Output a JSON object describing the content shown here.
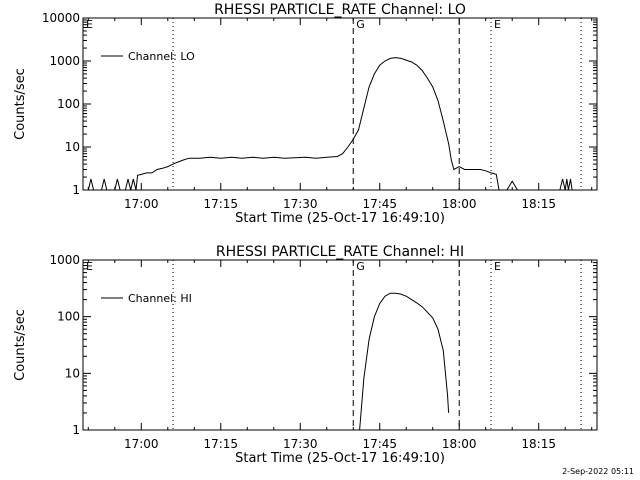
{
  "footer": {
    "timestamp": "2-Sep-2022 05:11"
  },
  "chart_data": [
    {
      "type": "line",
      "title": "RHESSI PARTICLE_RATE Channel: LO",
      "xlabel": "Start Time (25-Oct-17 16:49:10)",
      "ylabel": "Counts/sec",
      "yscale": "log",
      "ylim": [
        1,
        10000
      ],
      "xlim_minutes_after_16_49": [
        0,
        97
      ],
      "x_ticks": [
        {
          "label": "17:00",
          "t": 11
        },
        {
          "label": "17:15",
          "t": 26
        },
        {
          "label": "17:30",
          "t": 41
        },
        {
          "label": "17:45",
          "t": 56
        },
        {
          "label": "18:00",
          "t": 71
        },
        {
          "label": "18:15",
          "t": 86
        }
      ],
      "y_ticks": [
        {
          "label": "1",
          "v": 1
        },
        {
          "label": "10",
          "v": 10
        },
        {
          "label": "100",
          "v": 100
        },
        {
          "label": "1000",
          "v": 1000
        },
        {
          "label": "10000",
          "v": 10000
        }
      ],
      "legend": {
        "label": "Channel: LO",
        "position": "top-left"
      },
      "markers": [
        {
          "t": 17,
          "style": "dotted",
          "label": ""
        },
        {
          "t": 51,
          "style": "dashed",
          "label": "G"
        },
        {
          "t": 71,
          "style": "dashed",
          "label": ""
        },
        {
          "t": 77,
          "style": "dotted",
          "label": "E"
        },
        {
          "t": 94,
          "style": "dotted",
          "label": ""
        },
        {
          "t": 0,
          "style": "none",
          "label": "E"
        }
      ],
      "series": [
        {
          "name": "Channel: LO",
          "points": [
            [
              0,
              1
            ],
            [
              1,
              1
            ],
            [
              1.5,
              1.8
            ],
            [
              2,
              1
            ],
            [
              3.5,
              1
            ],
            [
              4,
              1.8
            ],
            [
              4.5,
              1
            ],
            [
              6,
              1
            ],
            [
              6.5,
              1.8
            ],
            [
              7,
              1
            ],
            [
              8,
              1
            ],
            [
              8.5,
              1.8
            ],
            [
              9,
              1
            ],
            [
              9.5,
              1.8
            ],
            [
              10,
              1
            ],
            [
              10.3,
              2.2
            ],
            [
              11,
              2.3
            ],
            [
              12,
              2.5
            ],
            [
              13,
              2.5
            ],
            [
              14,
              3
            ],
            [
              15,
              3.2
            ],
            [
              16,
              3.5
            ],
            [
              17,
              4
            ],
            [
              18,
              4.5
            ],
            [
              19,
              5
            ],
            [
              20,
              5.5
            ],
            [
              21,
              5.5
            ],
            [
              22,
              5.5
            ],
            [
              24,
              5.8
            ],
            [
              26,
              5.5
            ],
            [
              28,
              5.8
            ],
            [
              30,
              5.5
            ],
            [
              32,
              5.8
            ],
            [
              34,
              5.5
            ],
            [
              36,
              5.8
            ],
            [
              38,
              5.5
            ],
            [
              40,
              5.6
            ],
            [
              42,
              5.8
            ],
            [
              44,
              5.5
            ],
            [
              46,
              5.8
            ],
            [
              48,
              6
            ],
            [
              49,
              7
            ],
            [
              50,
              10
            ],
            [
              51,
              15
            ],
            [
              52,
              25
            ],
            [
              53,
              80
            ],
            [
              54,
              250
            ],
            [
              55,
              500
            ],
            [
              56,
              800
            ],
            [
              57,
              1000
            ],
            [
              58,
              1150
            ],
            [
              59,
              1200
            ],
            [
              60,
              1150
            ],
            [
              61,
              1050
            ],
            [
              62,
              950
            ],
            [
              63,
              800
            ],
            [
              64,
              600
            ],
            [
              65,
              400
            ],
            [
              66,
              250
            ],
            [
              67,
              120
            ],
            [
              68,
              40
            ],
            [
              69,
              12
            ],
            [
              69.5,
              5
            ],
            [
              70,
              3
            ],
            [
              71,
              3.5
            ],
            [
              72,
              3
            ],
            [
              73,
              3
            ],
            [
              75,
              3
            ],
            [
              76,
              2.8
            ],
            [
              77,
              2.5
            ],
            [
              78,
              2.3
            ],
            [
              78.5,
              1
            ],
            [
              80,
              1
            ],
            [
              81,
              1.6
            ],
            [
              82,
              1
            ],
            [
              85,
              1
            ],
            [
              88,
              1
            ],
            [
              90,
              1
            ],
            [
              90.5,
              1.8
            ],
            [
              91,
              1
            ],
            [
              91.3,
              1.8
            ],
            [
              91.6,
              1
            ],
            [
              92,
              1.8
            ],
            [
              92.3,
              1
            ],
            [
              93,
              1
            ],
            [
              97,
              1
            ]
          ]
        }
      ]
    },
    {
      "type": "line",
      "title": "RHESSI PARTICLE_RATE Channel: HI",
      "xlabel": "Start Time (25-Oct-17 16:49:10)",
      "ylabel": "Counts/sec",
      "yscale": "log",
      "ylim": [
        1,
        1000
      ],
      "xlim_minutes_after_16_49": [
        0,
        97
      ],
      "x_ticks": [
        {
          "label": "17:00",
          "t": 11
        },
        {
          "label": "17:15",
          "t": 26
        },
        {
          "label": "17:30",
          "t": 41
        },
        {
          "label": "17:45",
          "t": 56
        },
        {
          "label": "18:00",
          "t": 71
        },
        {
          "label": "18:15",
          "t": 86
        }
      ],
      "y_ticks": [
        {
          "label": "1",
          "v": 1
        },
        {
          "label": "10",
          "v": 10
        },
        {
          "label": "100",
          "v": 100
        },
        {
          "label": "1000",
          "v": 1000
        }
      ],
      "legend": {
        "label": "Channel: HI",
        "position": "top-left"
      },
      "markers": [
        {
          "t": 17,
          "style": "dotted",
          "label": ""
        },
        {
          "t": 51,
          "style": "dashed",
          "label": "G"
        },
        {
          "t": 71,
          "style": "dashed",
          "label": ""
        },
        {
          "t": 77,
          "style": "dotted",
          "label": "E"
        },
        {
          "t": 94,
          "style": "dotted",
          "label": ""
        },
        {
          "t": 0,
          "style": "none",
          "label": "E"
        }
      ],
      "series": [
        {
          "name": "Channel: HI",
          "points": [
            [
              52.2,
              1
            ],
            [
              53,
              8
            ],
            [
              54,
              40
            ],
            [
              55,
              100
            ],
            [
              56,
              170
            ],
            [
              57,
              230
            ],
            [
              58,
              260
            ],
            [
              59,
              260
            ],
            [
              60,
              250
            ],
            [
              61,
              230
            ],
            [
              62,
              200
            ],
            [
              63,
              175
            ],
            [
              64,
              150
            ],
            [
              65,
              120
            ],
            [
              66,
              95
            ],
            [
              67,
              60
            ],
            [
              68,
              25
            ],
            [
              68.8,
              4
            ],
            [
              69,
              2
            ]
          ]
        }
      ]
    }
  ]
}
